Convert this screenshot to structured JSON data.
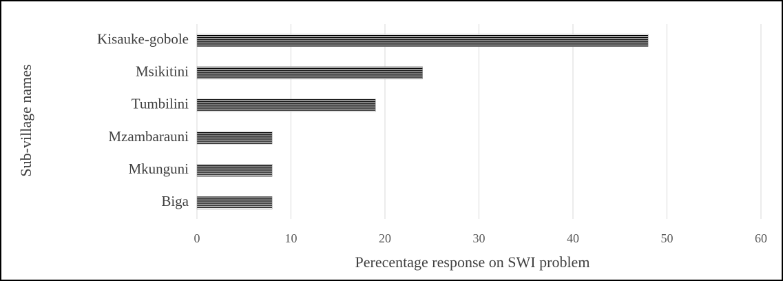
{
  "chart_data": {
    "type": "bar",
    "orientation": "horizontal",
    "x_label": "Perecentage response on SWI problem",
    "y_label": "Sub-village names",
    "categories": [
      "Kisauke-gobole",
      "Msikitini",
      "Tumbilini",
      "Mzambarauni",
      "Mkunguni",
      "Biga"
    ],
    "values": [
      48,
      24,
      19,
      8,
      8,
      8
    ],
    "color": "#000000",
    "xlim": [
      0,
      60
    ],
    "xticks": [
      0,
      10,
      20,
      30,
      40,
      50,
      60
    ],
    "grid": true
  }
}
